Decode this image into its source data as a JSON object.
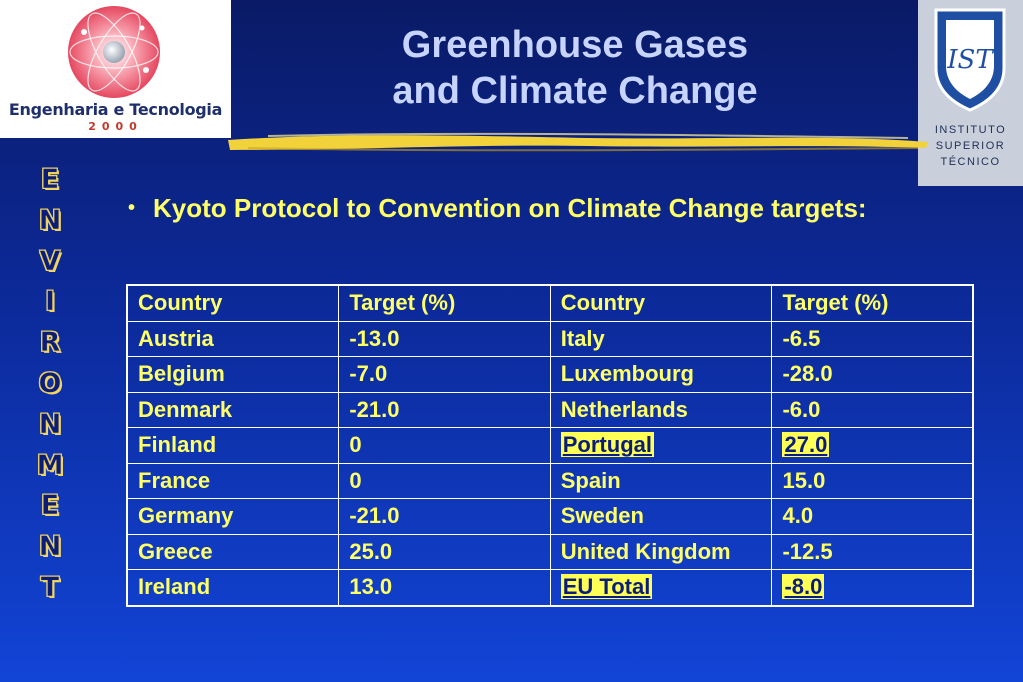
{
  "header": {
    "title_line1": "Greenhouse Gases",
    "title_line2": "and Climate Change"
  },
  "logos": {
    "left_brand": "Engenharia e Tecnologia",
    "left_year": "2000",
    "right_mark": "IST",
    "right_lines": [
      "INSTITUTO",
      "SUPERIOR",
      "TÉCNICO"
    ]
  },
  "sidebar": {
    "vertical_word": "ENVIRONMENT"
  },
  "content": {
    "bullet_symbol": "•",
    "bullet_text": "Kyoto Protocol to Convention on Climate Change targets:"
  },
  "table": {
    "headers": [
      "Country",
      "Target (%)",
      "Country",
      "Target (%)"
    ],
    "rows": [
      {
        "c1": "Austria",
        "t1": "-13.0",
        "c2": "Italy",
        "t2": "-6.5"
      },
      {
        "c1": "Belgium",
        "t1": "-7.0",
        "c2": "Luxembourg",
        "t2": "-28.0"
      },
      {
        "c1": "Denmark",
        "t1": "-21.0",
        "c2": "Netherlands",
        "t2": "-6.0"
      },
      {
        "c1": "Finland",
        "t1": "0",
        "c2": "Portugal",
        "t2": "27.0"
      },
      {
        "c1": "France",
        "t1": "0",
        "c2": "Spain",
        "t2": "15.0"
      },
      {
        "c1": "Germany",
        "t1": "-21.0",
        "c2": "Sweden",
        "t2": "4.0"
      },
      {
        "c1": "Greece",
        "t1": "25.0",
        "c2": "United Kingdom",
        "t2": "-12.5"
      },
      {
        "c1": "Ireland",
        "t1": "13.0",
        "c2": "EU Total",
        "t2": "-8.0"
      }
    ],
    "highlighted_rows": [
      3,
      7
    ]
  },
  "colors": {
    "background_top": "#0a1a66",
    "background_bottom": "#1244d6",
    "text_yellow": "#ffff66",
    "title": "#c7d4ff",
    "highlight": "#ffff55"
  }
}
